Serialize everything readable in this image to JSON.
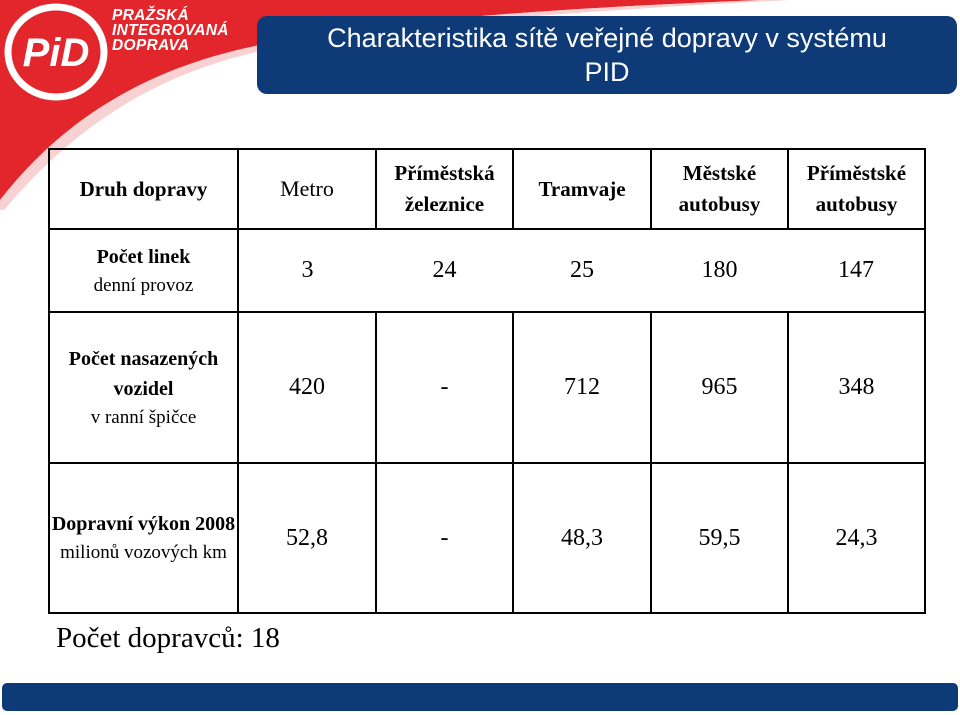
{
  "logo": {
    "initials": "PID",
    "line1": "PRAŽSKÁ",
    "line2": "INTEGROVANÁ",
    "line3": "DOPRAVA"
  },
  "title": "Charakteristika sítě veřejné dopravy v systému PID",
  "table": {
    "headers": [
      "Druh dopravy",
      "Metro",
      "Příměstská železnice",
      "Tramvaje",
      "Městské autobusy",
      "Příměstské autobusy"
    ],
    "rows": [
      {
        "label_main": "Počet linek",
        "label_sub": "denní provoz",
        "values": [
          "3",
          "24",
          "25",
          "180",
          "147"
        ]
      },
      {
        "label_main": "Počet nasazených vozidel",
        "label_sub": "v ranní špičce",
        "values": [
          "420",
          "-",
          "712",
          "965",
          "348"
        ]
      },
      {
        "label_main": "Dopravní výkon 2008",
        "label_sub": "milionů vozových km",
        "values": [
          "52,8",
          "-",
          "48,3",
          "59,5",
          "24,3"
        ]
      }
    ]
  },
  "footer": "Počet dopravců: 18",
  "colors": {
    "brand_blue": "#0e3a78",
    "brand_red": "#e3262b"
  }
}
